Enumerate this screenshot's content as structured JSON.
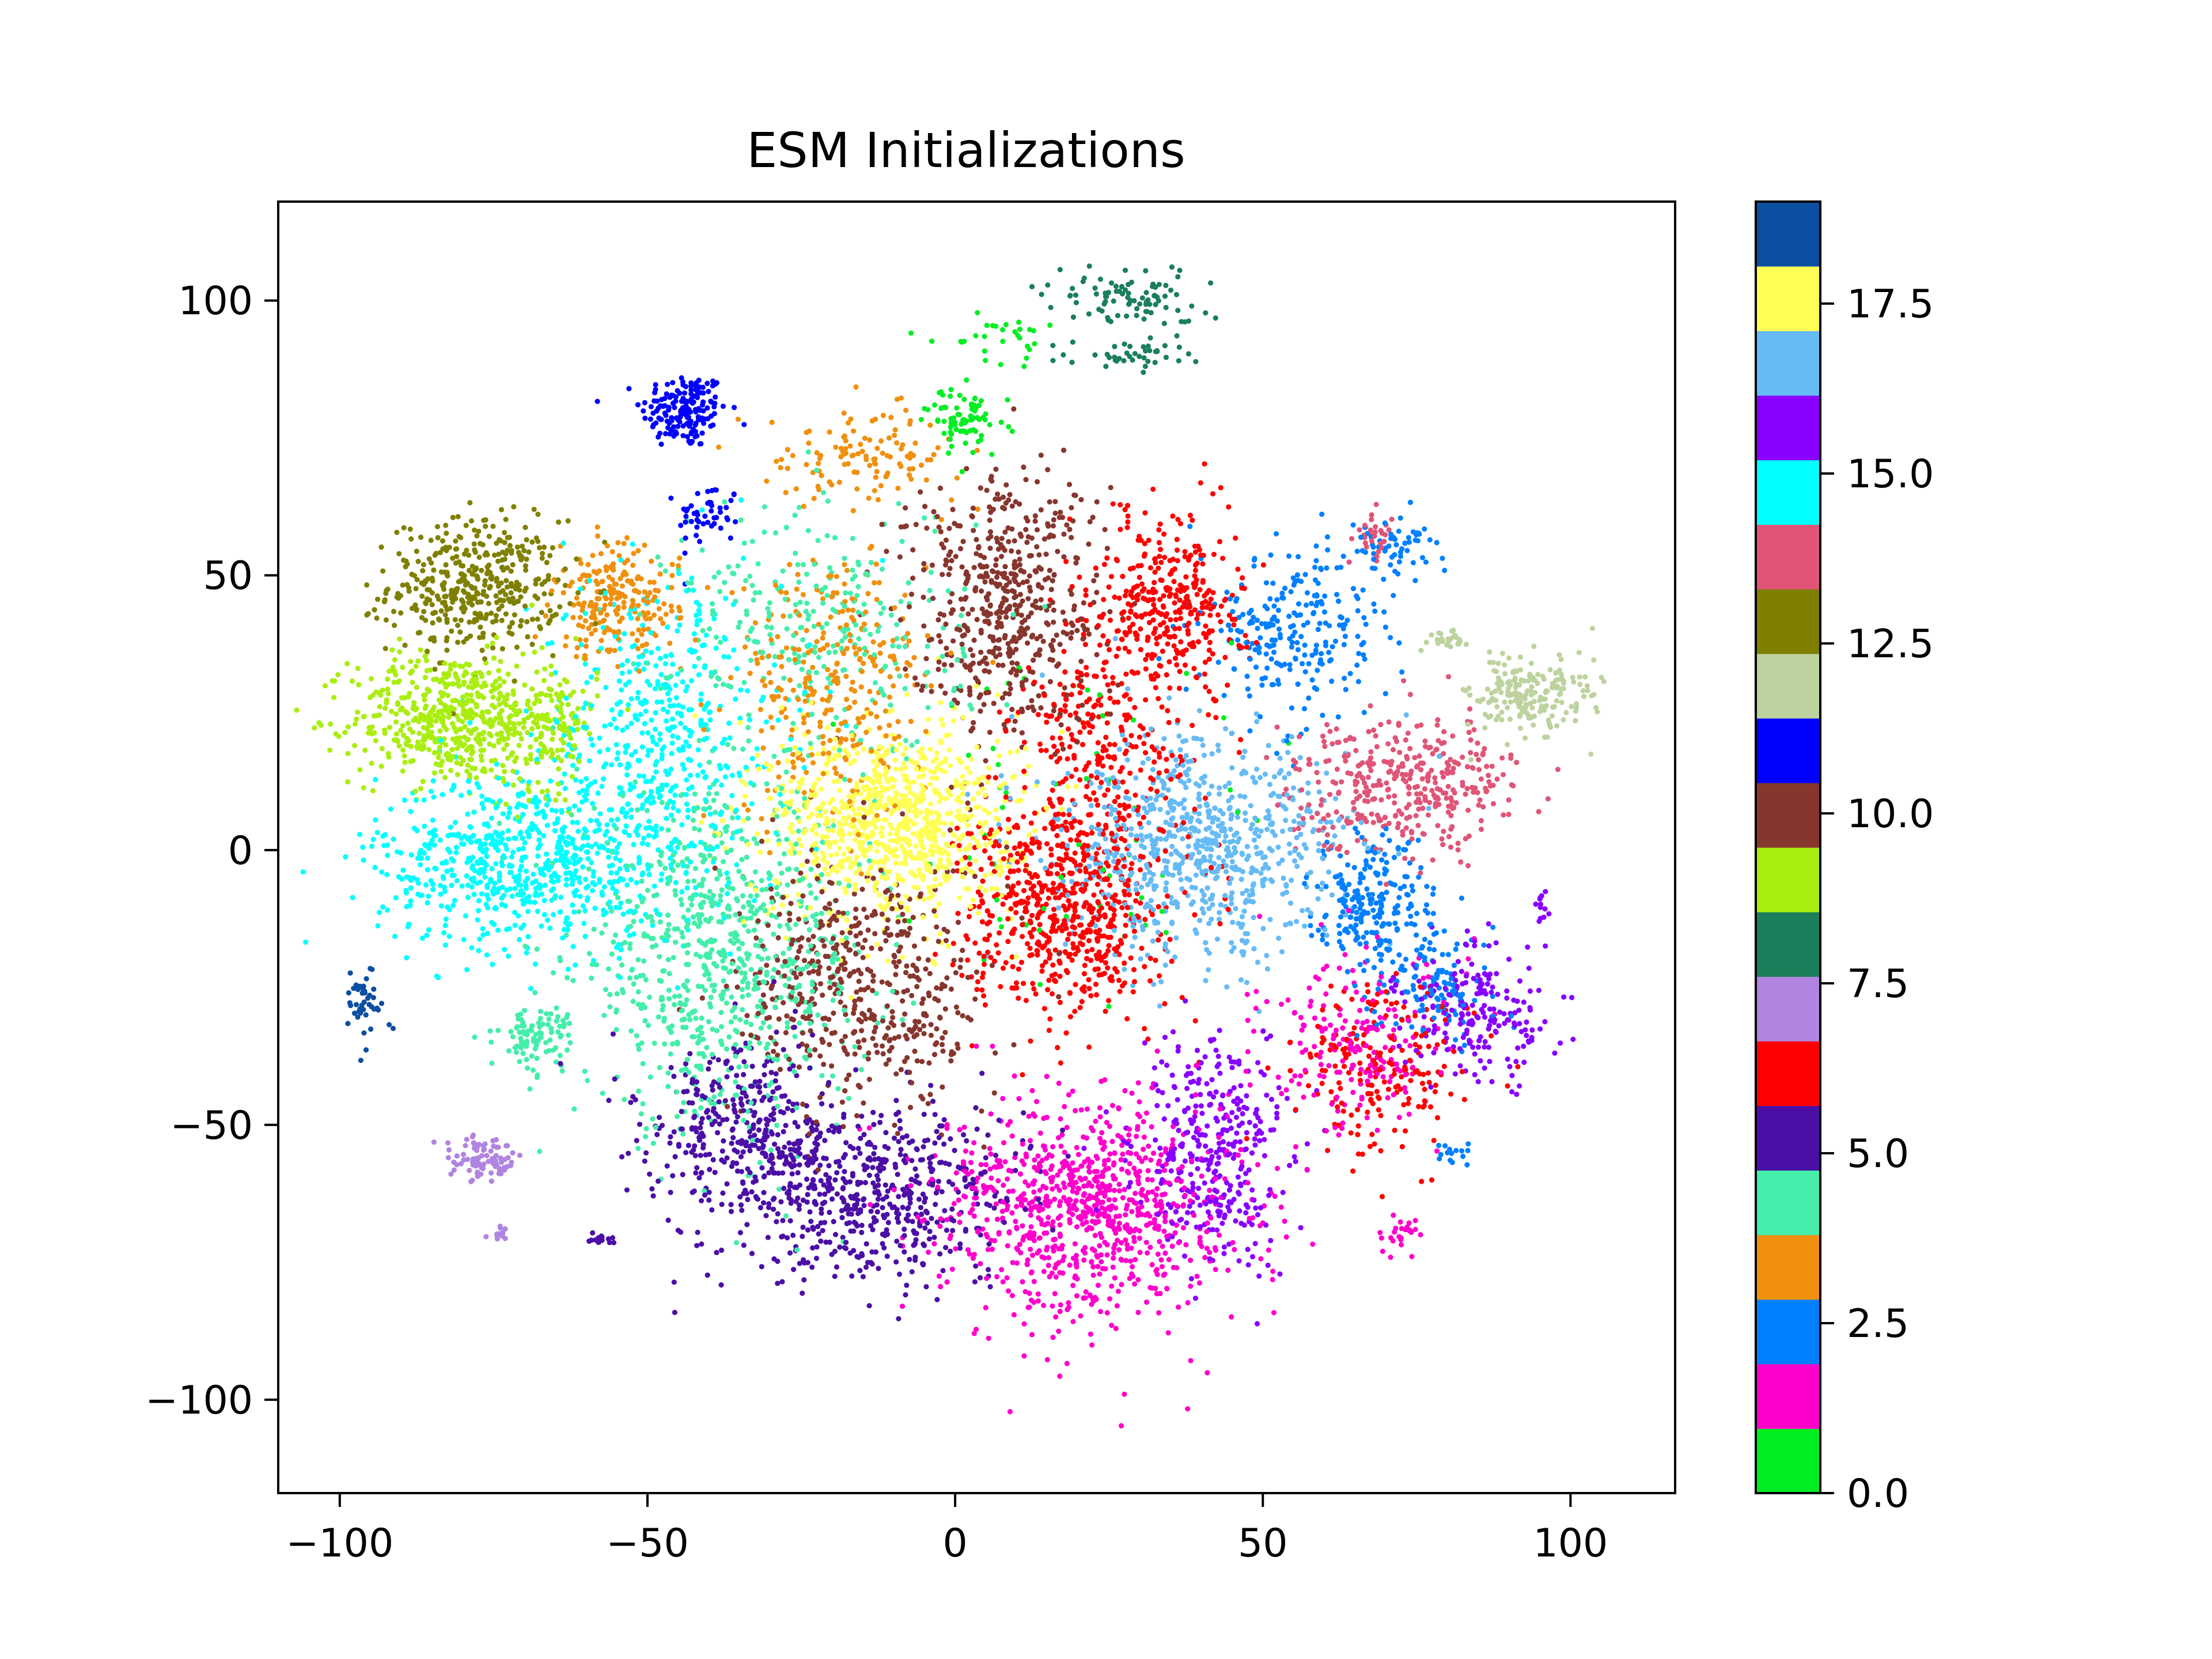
{
  "chart_data": {
    "type": "scatter",
    "title": "ESM Initializations",
    "xlabel": "",
    "ylabel": "",
    "xlim": [
      -110,
      117
    ],
    "ylim": [
      -117,
      118
    ],
    "xticks": [
      -100,
      -50,
      0,
      50,
      100
    ],
    "xtick_labels": [
      "−100",
      "−50",
      "0",
      "50",
      "100"
    ],
    "yticks": [
      100,
      50,
      0,
      -50,
      -100
    ],
    "ytick_labels": [
      "100",
      "50",
      "0",
      "−50",
      "−100"
    ],
    "grid": false,
    "colorbar": {
      "range": [
        0,
        19
      ],
      "ticks": [
        0,
        2.5,
        5,
        7.5,
        10,
        12.5,
        15,
        17.5
      ],
      "tick_labels": [
        "0.0",
        "2.5",
        "5.0",
        "7.5",
        "10.0",
        "12.5",
        "15.0",
        "17.5"
      ],
      "colors": [
        "#00ee22",
        "#ff00cc",
        "#0080ff",
        "#f0900e",
        "#44eeaa",
        "#4b0fa6",
        "#ff0000",
        "#b084e0",
        "#1a7f5a",
        "#aaee11",
        "#87362e",
        "#0000ff",
        "#bdd39f",
        "#808000",
        "#e05577",
        "#00ffff",
        "#8800ff",
        "#66bbf5",
        "#ffff55",
        "#0b4fa2"
      ]
    },
    "clusters": [
      {
        "class": 11,
        "x": -44,
        "y": 80,
        "sx": 3.5,
        "sy": 3.5,
        "n": 170
      },
      {
        "class": 11,
        "x": -40,
        "y": 61,
        "sx": 2.5,
        "sy": 3,
        "n": 50
      },
      {
        "class": 13,
        "x": -78,
        "y": 48,
        "sx": 7,
        "sy": 6,
        "n": 420
      },
      {
        "class": 9,
        "x": -82,
        "y": 24,
        "sx": 8,
        "sy": 6,
        "n": 520
      },
      {
        "class": 9,
        "x": -66,
        "y": 23,
        "sx": 4,
        "sy": 6,
        "n": 160
      },
      {
        "class": 15,
        "x": -70,
        "y": -2,
        "sx": 12,
        "sy": 8,
        "n": 700
      },
      {
        "class": 15,
        "x": -48,
        "y": 20,
        "sx": 10,
        "sy": 15,
        "n": 500
      },
      {
        "class": 4,
        "x": -38,
        "y": -20,
        "sx": 12,
        "sy": 15,
        "n": 800
      },
      {
        "class": 4,
        "x": -68,
        "y": -34,
        "sx": 3,
        "sy": 3,
        "n": 90
      },
      {
        "class": 4,
        "x": -22,
        "y": 40,
        "sx": 12,
        "sy": 12,
        "n": 300
      },
      {
        "class": 3,
        "x": -55,
        "y": 45,
        "sx": 5,
        "sy": 5,
        "n": 220
      },
      {
        "class": 3,
        "x": -20,
        "y": 30,
        "sx": 8,
        "sy": 12,
        "n": 300
      },
      {
        "class": 3,
        "x": -15,
        "y": 72,
        "sx": 8,
        "sy": 4,
        "n": 120
      },
      {
        "class": 18,
        "x": -10,
        "y": 5,
        "sx": 10,
        "sy": 9,
        "n": 900
      },
      {
        "class": 10,
        "x": 8,
        "y": 45,
        "sx": 8,
        "sy": 12,
        "n": 550
      },
      {
        "class": 10,
        "x": -15,
        "y": -25,
        "sx": 10,
        "sy": 12,
        "n": 500
      },
      {
        "class": 6,
        "x": 18,
        "y": -10,
        "sx": 8,
        "sy": 10,
        "n": 650
      },
      {
        "class": 6,
        "x": 35,
        "y": 45,
        "sx": 6,
        "sy": 8,
        "n": 350
      },
      {
        "class": 6,
        "x": 25,
        "y": 20,
        "sx": 8,
        "sy": 10,
        "n": 250
      },
      {
        "class": 6,
        "x": 70,
        "y": -40,
        "sx": 7,
        "sy": 8,
        "n": 200
      },
      {
        "class": 17,
        "x": 40,
        "y": 0,
        "sx": 12,
        "sy": 10,
        "n": 750
      },
      {
        "class": 14,
        "x": 73,
        "y": 12,
        "sx": 9,
        "sy": 6,
        "n": 380
      },
      {
        "class": 2,
        "x": 68,
        "y": -10,
        "sx": 5,
        "sy": 6,
        "n": 220
      },
      {
        "class": 2,
        "x": 55,
        "y": 40,
        "sx": 7,
        "sy": 8,
        "n": 250
      },
      {
        "class": 2,
        "x": 78,
        "y": -25,
        "sx": 5,
        "sy": 5,
        "n": 120
      },
      {
        "class": 1,
        "x": 22,
        "y": -65,
        "sx": 12,
        "sy": 10,
        "n": 900
      },
      {
        "class": 1,
        "x": 65,
        "y": -35,
        "sx": 8,
        "sy": 8,
        "n": 200
      },
      {
        "class": 16,
        "x": 42,
        "y": -55,
        "sx": 6,
        "sy": 10,
        "n": 350
      },
      {
        "class": 16,
        "x": 85,
        "y": -30,
        "sx": 6,
        "sy": 6,
        "n": 200
      },
      {
        "class": 5,
        "x": -15,
        "y": -62,
        "sx": 12,
        "sy": 8,
        "n": 600
      },
      {
        "class": 5,
        "x": -35,
        "y": -50,
        "sx": 8,
        "sy": 8,
        "n": 300
      },
      {
        "class": 12,
        "x": 93,
        "y": 28,
        "sx": 5,
        "sy": 4,
        "n": 200
      },
      {
        "class": 12,
        "x": 80,
        "y": 38,
        "sx": 2,
        "sy": 0.8,
        "n": 25
      },
      {
        "class": 7,
        "x": -77,
        "y": -56,
        "sx": 3,
        "sy": 2,
        "n": 90
      },
      {
        "class": 7,
        "x": -74,
        "y": -70,
        "sx": 0.6,
        "sy": 1,
        "n": 12
      },
      {
        "class": 19,
        "x": -96,
        "y": -28,
        "sx": 1.5,
        "sy": 3,
        "n": 45
      },
      {
        "class": 8,
        "x": 28,
        "y": 100,
        "sx": 7,
        "sy": 3,
        "n": 90
      },
      {
        "class": 8,
        "x": 28,
        "y": 90,
        "sx": 5,
        "sy": 1.5,
        "n": 40
      },
      {
        "class": 0,
        "x": 2,
        "y": 78,
        "sx": 3,
        "sy": 3,
        "n": 80
      },
      {
        "class": 0,
        "x": 8,
        "y": 92,
        "sx": 6,
        "sy": 2,
        "n": 30
      },
      {
        "class": 0,
        "x": 20,
        "y": 5,
        "sx": 15,
        "sy": 20,
        "n": 60
      },
      {
        "class": 2,
        "x": 72,
        "y": 55,
        "sx": 4,
        "sy": 3,
        "n": 60
      },
      {
        "class": 14,
        "x": 68,
        "y": 57,
        "sx": 2,
        "sy": 2,
        "n": 30
      },
      {
        "class": 1,
        "x": 72,
        "y": -70,
        "sx": 1.5,
        "sy": 1.5,
        "n": 25
      },
      {
        "class": 5,
        "x": -57,
        "y": -71,
        "sx": 1,
        "sy": 1,
        "n": 15
      },
      {
        "class": 16,
        "x": 95,
        "y": -10,
        "sx": 0.8,
        "sy": 1.5,
        "n": 12
      },
      {
        "class": 2,
        "x": 81,
        "y": -55,
        "sx": 2,
        "sy": 1,
        "n": 15
      }
    ]
  }
}
